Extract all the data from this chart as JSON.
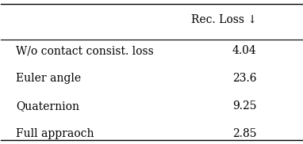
{
  "col_header": "Rec. Loss ↓",
  "rows": [
    [
      "W/o contact consist. loss",
      "4.04"
    ],
    [
      "Euler angle",
      "23.6"
    ],
    [
      "Quaternion",
      "9.25"
    ],
    [
      "Full appraoch",
      "2.85"
    ]
  ],
  "background_color": "#ffffff",
  "text_color": "#000000",
  "font_size": 10,
  "header_font_size": 10
}
